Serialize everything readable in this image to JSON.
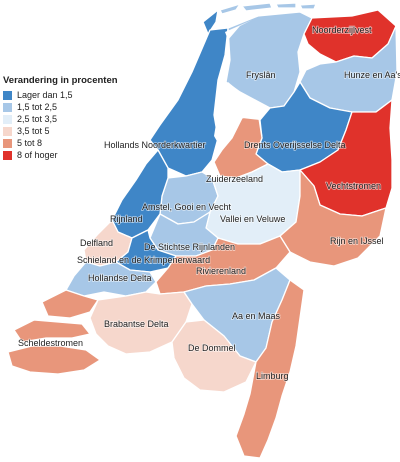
{
  "legend": {
    "title": "Verandering in procenten",
    "items": [
      {
        "label": "Lager dan 1,5",
        "color": "#3f86c7"
      },
      {
        "label": "1,5 tot 2,5",
        "color": "#a7c7e7"
      },
      {
        "label": "2,5 tot 3,5",
        "color": "#e2eef8"
      },
      {
        "label": "3,5 tot 5",
        "color": "#f6d7cc"
      },
      {
        "label": "5 tot 8",
        "color": "#e8967b"
      },
      {
        "label": "8 of hoger",
        "color": "#e0322b"
      }
    ]
  },
  "regions": [
    {
      "name": "Noorderzijlvest",
      "class": "8 of hoger"
    },
    {
      "name": "Fryslân",
      "class": "1,5 tot 2,5"
    },
    {
      "name": "Hunze en Aa's",
      "class": "1,5 tot 2,5"
    },
    {
      "name": "Hollands Noorderkwartier",
      "class": "Lager dan 1,5"
    },
    {
      "name": "Drents Overijsselse Delta",
      "class": "Lager dan 1,5"
    },
    {
      "name": "Zuiderzeeland",
      "class": "5 tot 8"
    },
    {
      "name": "Vechtstromen",
      "class": "8 of hoger"
    },
    {
      "name": "Amstel, Gooi en Vecht",
      "class": "1,5 tot 2,5"
    },
    {
      "name": "Rijnland",
      "class": "Lager dan 1,5"
    },
    {
      "name": "Vallei en Veluwe",
      "class": "2,5 tot 3,5"
    },
    {
      "name": "Delfland",
      "class": "3,5 tot 5"
    },
    {
      "name": "De Stichtse Rijnlanden",
      "class": "1,5 tot 2,5"
    },
    {
      "name": "Rijn en IJssel",
      "class": "5 tot 8"
    },
    {
      "name": "Schieland en de Krimpenerwaard",
      "class": "Lager dan 1,5"
    },
    {
      "name": "Hollandse Delta",
      "class": "1,5 tot 2,5"
    },
    {
      "name": "Rivierenland",
      "class": "5 tot 8"
    },
    {
      "name": "Brabantse Delta",
      "class": "3,5 tot 5"
    },
    {
      "name": "Aa en Maas",
      "class": "1,5 tot 2,5"
    },
    {
      "name": "Scheldestromen",
      "class": "5 tot 8"
    },
    {
      "name": "De Dommel",
      "class": "3,5 tot 5"
    },
    {
      "name": "Limburg",
      "class": "5 tot 8"
    }
  ]
}
